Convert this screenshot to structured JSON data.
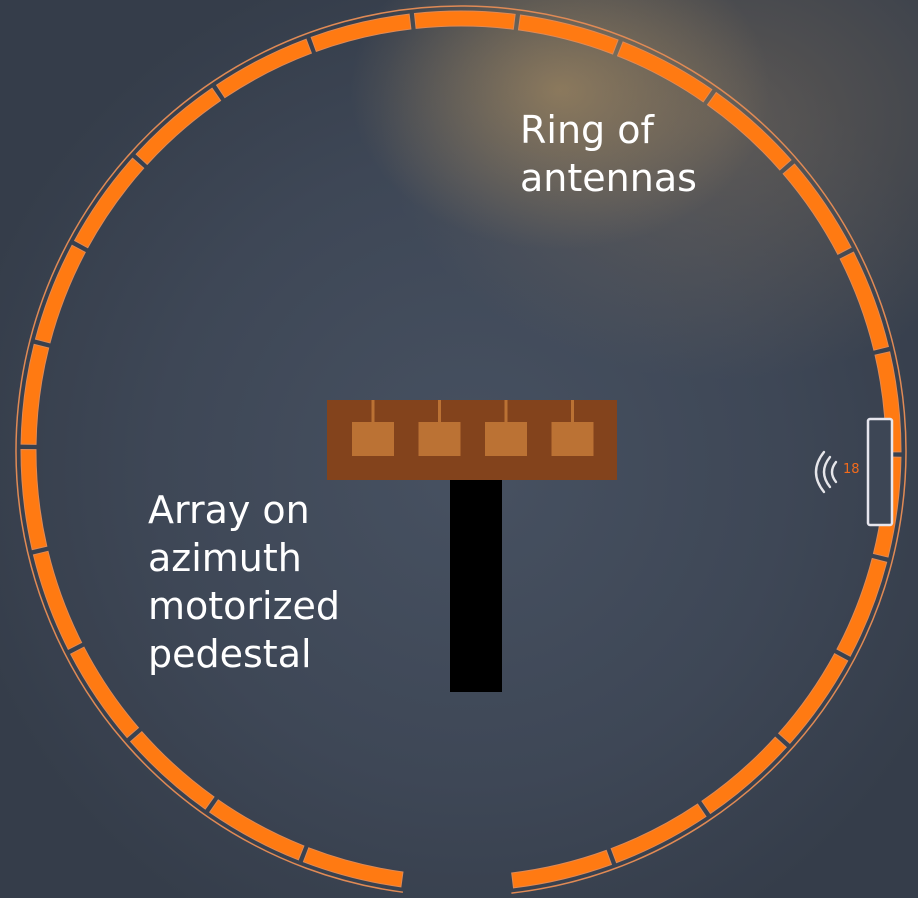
{
  "labels": {
    "ring": "Ring of\nantennas",
    "array": "Array on\nazimuth\nmotorized\npedestal"
  },
  "ring_badge": {
    "icon": "signal-waves-icon",
    "number": "18"
  },
  "ring": {
    "segment_count": 25,
    "gap_at": "bottom",
    "highlighted_segment": 18
  },
  "array": {
    "element_count": 4
  },
  "colors": {
    "ring_orange": "#ff7a12",
    "ring_outline": "#e08a55",
    "array_board": "#83431c",
    "array_element": "#bb7234",
    "pedestal": "#000000",
    "highlight_outline": "#e6e6ee",
    "label_text": "#ffffff"
  }
}
